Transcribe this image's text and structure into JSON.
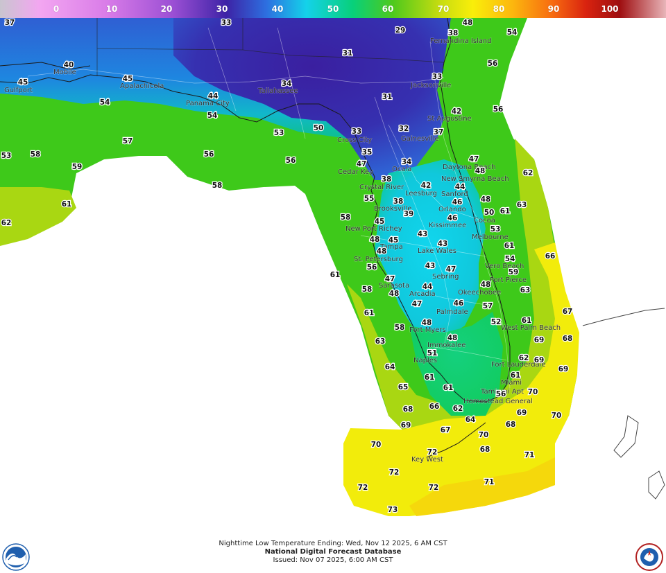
{
  "colorbar": {
    "labels": [
      "0",
      "10",
      "20",
      "30",
      "40",
      "50",
      "60",
      "70",
      "80",
      "90",
      "100"
    ],
    "stops": [
      "#c9c5cf",
      "#f3a6f1",
      "#d97ce8",
      "#9b4fd4",
      "#3d23a6",
      "#2d6fe0",
      "#14d2ea",
      "#08d07a",
      "#4ec91c",
      "#c6dc10",
      "#f9ee0a",
      "#fcb60e",
      "#f76a10",
      "#d9230f",
      "#9e0d0f",
      "#e8b5b9"
    ]
  },
  "temperatures": [
    {
      "v": "37",
      "name": "temp-37"
    },
    {
      "v": "33"
    },
    {
      "v": "29"
    },
    {
      "v": "38"
    },
    {
      "v": "48"
    },
    {
      "v": "54"
    },
    {
      "v": "31"
    },
    {
      "v": "56"
    },
    {
      "v": "40"
    },
    {
      "v": "45"
    },
    {
      "v": "45"
    },
    {
      "v": "34"
    },
    {
      "v": "33"
    },
    {
      "v": "44"
    },
    {
      "v": "31"
    },
    {
      "v": "56"
    },
    {
      "v": "54"
    },
    {
      "v": "54"
    },
    {
      "v": "42"
    },
    {
      "v": "50"
    },
    {
      "v": "33"
    },
    {
      "v": "32"
    },
    {
      "v": "37"
    },
    {
      "v": "53"
    },
    {
      "v": "57"
    },
    {
      "v": "53"
    },
    {
      "v": "58"
    },
    {
      "v": "56"
    },
    {
      "v": "56"
    },
    {
      "v": "35"
    },
    {
      "v": "47"
    },
    {
      "v": "34"
    },
    {
      "v": "47"
    },
    {
      "v": "48"
    },
    {
      "v": "62"
    },
    {
      "v": "59"
    },
    {
      "v": "58"
    },
    {
      "v": "38"
    },
    {
      "v": "42"
    },
    {
      "v": "44"
    },
    {
      "v": "61"
    },
    {
      "v": "55"
    },
    {
      "v": "38"
    },
    {
      "v": "46"
    },
    {
      "v": "48"
    },
    {
      "v": "63"
    },
    {
      "v": "62"
    },
    {
      "v": "58"
    },
    {
      "v": "39"
    },
    {
      "v": "46"
    },
    {
      "v": "50"
    },
    {
      "v": "61"
    },
    {
      "v": "45"
    },
    {
      "v": "53"
    },
    {
      "v": "48"
    },
    {
      "v": "45"
    },
    {
      "v": "43"
    },
    {
      "v": "43"
    },
    {
      "v": "48"
    },
    {
      "v": "61"
    },
    {
      "v": "54"
    },
    {
      "v": "66"
    },
    {
      "v": "56"
    },
    {
      "v": "43"
    },
    {
      "v": "47"
    },
    {
      "v": "59"
    },
    {
      "v": "61"
    },
    {
      "v": "47"
    },
    {
      "v": "58"
    },
    {
      "v": "44"
    },
    {
      "v": "48"
    },
    {
      "v": "63"
    },
    {
      "v": "48"
    },
    {
      "v": "47"
    },
    {
      "v": "46"
    },
    {
      "v": "57"
    },
    {
      "v": "67"
    },
    {
      "v": "61"
    },
    {
      "v": "52"
    },
    {
      "v": "61"
    },
    {
      "v": "58"
    },
    {
      "v": "48"
    },
    {
      "v": "48"
    },
    {
      "v": "68"
    },
    {
      "v": "69"
    },
    {
      "v": "63"
    },
    {
      "v": "51"
    },
    {
      "v": "62"
    },
    {
      "v": "69"
    },
    {
      "v": "64"
    },
    {
      "v": "69"
    },
    {
      "v": "61"
    },
    {
      "v": "65"
    },
    {
      "v": "61"
    },
    {
      "v": "61"
    },
    {
      "v": "56"
    },
    {
      "v": "70"
    },
    {
      "v": "68"
    },
    {
      "v": "66"
    },
    {
      "v": "62"
    },
    {
      "v": "69"
    },
    {
      "v": "70"
    },
    {
      "v": "69"
    },
    {
      "v": "64"
    },
    {
      "v": "68"
    },
    {
      "v": "67"
    },
    {
      "v": "70"
    },
    {
      "v": "70"
    },
    {
      "v": "68"
    },
    {
      "v": "72"
    },
    {
      "v": "71"
    },
    {
      "v": "72"
    },
    {
      "v": "71"
    },
    {
      "v": "72"
    },
    {
      "v": "72"
    },
    {
      "v": "73"
    }
  ],
  "cities": [
    "Mobile",
    "Gulfport",
    "Panama City",
    "Tallahassee",
    "Jacksonville",
    "St Augustine",
    "Daytona Beach",
    "New Smyrna Beach",
    "Sanford",
    "Orlando",
    "Cocoa",
    "Melbourne",
    "Kissimmee",
    "Leesburg",
    "Ocala",
    "Gainesville",
    "Crystal River",
    "Cedar Key",
    "Brooksville",
    "New Port Richey",
    "St. Petersburg",
    "Tampa",
    "Sarasota",
    "Lake Wales",
    "Sebring",
    "Arcadia",
    "Vero Beach",
    "Fort Pierce",
    "Okeechobee",
    "Palmdale",
    "Fort Myers",
    "Immokalee",
    "Naples",
    "West Palm Beach",
    "Fort Lauderdale",
    "Miami",
    "Tamiami Apt",
    "Homestead General",
    "Key West",
    "Fernandina Island",
    "Cross City",
    "Apalachicola"
  ],
  "footer": {
    "line1": "Nighttime Low Temperature Ending: Wed, Nov 12 2025, 6 AM CST",
    "line2": "National Digital Forecast Database",
    "line3": "Issued: Nov 07 2025, 6:00 AM CST"
  },
  "logos": {
    "left": "noaa-logo",
    "right": "nws-logo"
  }
}
